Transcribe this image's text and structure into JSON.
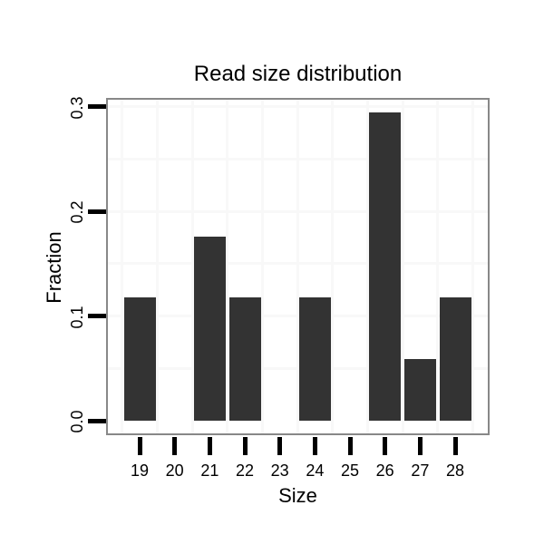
{
  "chart_data": {
    "type": "bar",
    "title": "Read size distribution",
    "xlabel": "Size",
    "ylabel": "Fraction",
    "categories": [
      "19",
      "20",
      "21",
      "22",
      "23",
      "24",
      "25",
      "26",
      "27",
      "28"
    ],
    "values": [
      0.118,
      0,
      0.176,
      0.118,
      0,
      0.118,
      0,
      0.294,
      0.059,
      0.118
    ],
    "ylim": [
      0,
      0.31
    ],
    "yticks": [
      0,
      0.1,
      0.2,
      0.3
    ],
    "ytick_labels": [
      "0.0",
      "0.1",
      "0.2",
      "0.3"
    ],
    "yminor_gridlines": [
      0.05,
      0.1,
      0.15,
      0.2,
      0.25,
      0.3
    ],
    "grid": "very light gray, horizontal every 0.05, vertical at category boundaries",
    "legend_position": "none",
    "colors": {
      "bar": "#333333",
      "panel_border": "#888888",
      "gridline": "#f8f8f8",
      "tick": "#000000",
      "text": "#000000",
      "background": "#ffffff"
    }
  }
}
